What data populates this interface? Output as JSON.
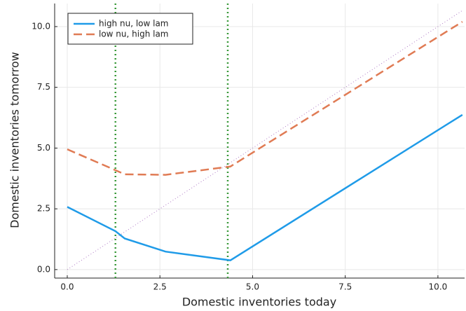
{
  "chart_data": {
    "type": "line",
    "xlabel": "Domestic inventories today",
    "ylabel": "Domestic inventories tomorrow",
    "series": [
      {
        "name": "high nu, low lam",
        "color": "#1f9be8",
        "dash": "solid",
        "x": [
          0,
          1.3,
          1.55,
          2.65,
          4.4,
          10.66
        ],
        "values": [
          2.58,
          1.58,
          1.28,
          0.74,
          0.38,
          6.37
        ]
      },
      {
        "name": "low nu, high lam",
        "color": "#e07b54",
        "dash": "dashed",
        "x": [
          0,
          1.3,
          1.55,
          2.65,
          4.4,
          10.66
        ],
        "values": [
          4.95,
          4.09,
          3.92,
          3.9,
          4.24,
          10.2
        ]
      }
    ],
    "diagonal": {
      "color": "#b07cc6",
      "x": [
        0,
        10.66
      ],
      "values": [
        0,
        10.66
      ]
    },
    "vlines": {
      "color": "#3a9a3a",
      "x": [
        1.3,
        4.33
      ]
    },
    "xlim": [
      -0.34,
      10.72
    ],
    "ylim": [
      -0.35,
      10.95
    ],
    "xticks": [
      {
        "value": 0,
        "label": "0.0"
      },
      {
        "value": 2.5,
        "label": "2.5"
      },
      {
        "value": 5,
        "label": "5.0"
      },
      {
        "value": 7.5,
        "label": "7.5"
      },
      {
        "value": 10,
        "label": "10.0"
      }
    ],
    "yticks": [
      {
        "value": 0,
        "label": "0.0"
      },
      {
        "value": 2.5,
        "label": "2.5"
      },
      {
        "value": 5,
        "label": "5.0"
      },
      {
        "value": 7.5,
        "label": "7.5"
      },
      {
        "value": 10,
        "label": "10.0"
      }
    ],
    "grid": true,
    "legend": "top-left"
  }
}
